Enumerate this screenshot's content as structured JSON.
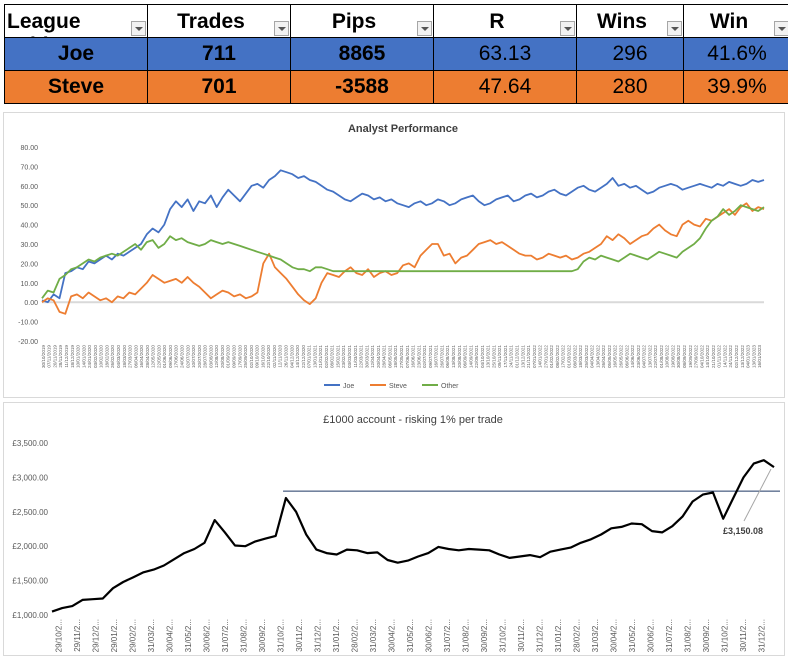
{
  "table": {
    "headers": [
      "League Tabl",
      "Trades",
      "Pips",
      "R",
      "Wins",
      "Win Rate"
    ],
    "rows": [
      {
        "name": "Joe",
        "trades": "711",
        "pips": "8865",
        "r": "63.13",
        "wins": "296",
        "rate": "41.6%"
      },
      {
        "name": "Steve",
        "trades": "701",
        "pips": "-3588",
        "r": "47.64",
        "wins": "280",
        "rate": "39.9%"
      }
    ],
    "colors": {
      "joe": "#4472c4",
      "steve": "#ed7d31"
    }
  },
  "chart_data": [
    {
      "type": "line",
      "title": "Analyst Performance",
      "ylim": [
        -20,
        80
      ],
      "yticks": [
        "-20.00",
        "-10.00",
        "0.00",
        "10.00",
        "20.00",
        "30.00",
        "40.00",
        "50.00",
        "60.00",
        "70.00",
        "80.00"
      ],
      "grid": false,
      "legend": "bottom",
      "x_tick_labels": [
        "30/10/2019",
        "07/11/2019",
        "20/11/2019",
        "28/11/2019",
        "11/12/2019",
        "18/12/2019",
        "10/01/2020",
        "14/01/2020",
        "24/01/2020",
        "03/02/2020",
        "10/02/2020",
        "18/02/2020",
        "26/02/2020",
        "04/03/2020",
        "18/03/2020",
        "27/03/2020",
        "06/04/2020",
        "16/04/2020",
        "28/04/2020",
        "12/05/2020",
        "22/05/2020",
        "01/06/2020",
        "09/06/2020",
        "17/06/2020",
        "24/06/2020",
        "02/07/2020",
        "10/07/2020",
        "20/07/2020",
        "28/07/2020",
        "03/08/2020",
        "12/08/2020",
        "20/08/2020",
        "01/09/2020",
        "09/09/2020",
        "17/09/2020",
        "25/09/2020",
        "02/10/2020",
        "09/10/2020",
        "16/10/2020",
        "22/10/2020",
        "02/11/2020",
        "12/11/2020",
        "26/11/2020",
        "04/12/2020",
        "14/12/2020",
        "22/12/2020",
        "07/01/2021",
        "13/01/2021",
        "21/01/2021",
        "02/02/2021",
        "08/02/2021",
        "15/02/2021",
        "23/02/2021",
        "03/03/2021",
        "11/03/2021",
        "22/03/2021",
        "30/03/2021",
        "12/04/2021",
        "20/04/2021",
        "28/04/2021",
        "06/05/2021",
        "18/05/2021",
        "27/05/2021",
        "07/06/2021",
        "16/06/2021",
        "23/06/2021",
        "02/07/2021",
        "09/07/2021",
        "16/07/2021",
        "26/07/2021",
        "06/08/2021",
        "13/08/2021",
        "20/08/2021",
        "06/09/2021",
        "14/09/2021",
        "22/09/2021",
        "04/10/2021",
        "13/10/2021",
        "25/10/2021",
        "09/11/2021",
        "17/11/2021",
        "24/11/2021",
        "01/12/2021",
        "13/12/2021",
        "21/12/2021",
        "07/01/2022",
        "14/01/2022",
        "27/01/2022",
        "01/02/2022",
        "08/02/2022",
        "17/02/2022",
        "01/03/2022",
        "08/03/2022",
        "18/03/2022",
        "25/03/2022",
        "04/04/2022",
        "13/04/2022",
        "26/04/2022",
        "05/05/2022",
        "16/05/2022",
        "26/05/2022",
        "06/06/2022",
        "14/06/2022",
        "23/06/2022",
        "04/07/2022",
        "13/07/2022",
        "22/07/2022",
        "01/08/2022",
        "10/08/2022",
        "19/08/2022",
        "30/08/2022",
        "08/09/2022",
        "19/09/2022",
        "27/09/2022",
        "04/10/2022",
        "14/10/2022",
        "21/10/2022",
        "01/11/2022",
        "14/11/2022",
        "24/11/2022",
        "02/12/2022",
        "13/12/2022",
        "04/01/2023",
        "13/01/2023",
        "16/01/2023"
      ],
      "series": [
        {
          "name": "Joe",
          "color": "#4472c4",
          "values": [
            1,
            0,
            4,
            2,
            15,
            16,
            18,
            17,
            21,
            20,
            22,
            24,
            22,
            25,
            24,
            26,
            28,
            30,
            35,
            38,
            36,
            40,
            48,
            52,
            49,
            53,
            47,
            52,
            51,
            55,
            49,
            54,
            58,
            55,
            52,
            56,
            60,
            61,
            59,
            63,
            65,
            68,
            67,
            66,
            64,
            65,
            63,
            62,
            60,
            58,
            57,
            55,
            53,
            52,
            54,
            56,
            55,
            53,
            54,
            52,
            53,
            51,
            50,
            49,
            51,
            52,
            50,
            51,
            53,
            52,
            50,
            51,
            53,
            54,
            55,
            52,
            50,
            51,
            53,
            54,
            55,
            52,
            53,
            55,
            56,
            54,
            55,
            57,
            58,
            56,
            55,
            57,
            59,
            60,
            58,
            57,
            59,
            61,
            64,
            60,
            61,
            59,
            60,
            58,
            56,
            57,
            59,
            60,
            61,
            60,
            58,
            59,
            60,
            61,
            60,
            59,
            61,
            60,
            62,
            61,
            60,
            61,
            63,
            62,
            63
          ]
        },
        {
          "name": "Steve",
          "color": "#ed7d31",
          "values": [
            0,
            2,
            1,
            -5,
            -6,
            3,
            4,
            2,
            5,
            3,
            1,
            2,
            0,
            3,
            2,
            5,
            4,
            7,
            10,
            14,
            12,
            10,
            11,
            12,
            10,
            13,
            10,
            8,
            5,
            2,
            4,
            6,
            5,
            3,
            4,
            2,
            3,
            5,
            20,
            25,
            18,
            15,
            12,
            8,
            4,
            1,
            -1,
            2,
            10,
            15,
            14,
            13,
            16,
            18,
            15,
            14,
            17,
            13,
            15,
            16,
            14,
            15,
            19,
            20,
            18,
            24,
            27,
            30,
            30,
            24,
            25,
            20,
            23,
            24,
            27,
            30,
            31,
            32,
            30,
            31,
            29,
            27,
            25,
            24,
            24,
            22,
            23,
            25,
            24,
            23,
            24,
            22,
            23,
            25,
            26,
            28,
            30,
            34,
            32,
            35,
            33,
            30,
            32,
            34,
            35,
            38,
            40,
            37,
            35,
            34,
            40,
            42,
            40,
            39,
            43,
            42,
            44,
            46,
            48,
            45,
            49,
            51,
            47,
            49,
            48
          ]
        },
        {
          "name": "Other",
          "color": "#70ad47",
          "values": [
            2,
            6,
            5,
            12,
            14,
            17,
            18,
            20,
            22,
            21,
            23,
            24,
            25,
            24,
            26,
            28,
            30,
            27,
            31,
            32,
            28,
            30,
            34,
            32,
            33,
            31,
            30,
            29,
            30,
            32,
            31,
            30,
            31,
            30,
            29,
            28,
            27,
            26,
            25,
            24,
            23,
            22,
            20,
            18,
            17,
            17,
            16,
            18,
            18,
            17,
            16,
            16,
            16,
            16,
            16,
            16,
            16,
            16,
            16,
            16,
            16,
            16,
            16,
            16,
            16,
            16,
            16,
            16,
            16,
            16,
            16,
            16,
            16,
            16,
            16,
            16,
            16,
            16,
            16,
            16,
            16,
            16,
            16,
            16,
            16,
            16,
            16,
            16,
            16,
            16,
            16,
            16,
            17,
            21,
            23,
            22,
            24,
            23,
            22,
            21,
            23,
            25,
            24,
            23,
            22,
            24,
            26,
            25,
            24,
            23,
            26,
            28,
            30,
            33,
            38,
            42,
            44,
            48,
            45,
            47,
            50,
            49,
            48,
            47,
            49
          ]
        }
      ]
    },
    {
      "type": "line",
      "title": "£1000 account - risking 1% per trade",
      "ylim": [
        1000,
        3500
      ],
      "yticks": [
        "£1,000.00",
        "£1,500.00",
        "£2,000.00",
        "£2,500.00",
        "£3,000.00",
        "£3,500.00"
      ],
      "x_tick_labels": [
        "29/10/2...",
        "29/11/2...",
        "29/12/2...",
        "29/01/2...",
        "29/02/2...",
        "31/03/2...",
        "30/04/2...",
        "31/05/2...",
        "30/06/2...",
        "31/07/2...",
        "31/08/2...",
        "30/09/2...",
        "31/10/2...",
        "30/11/2...",
        "31/12/2...",
        "31/01/2...",
        "28/02/2...",
        "31/03/2...",
        "30/04/2...",
        "31/05/2...",
        "30/06/2...",
        "31/07/2...",
        "31/08/2...",
        "30/09/2...",
        "31/10/2...",
        "30/11/2...",
        "31/12/2...",
        "31/01/2...",
        "28/02/2...",
        "31/03/2...",
        "30/04/2...",
        "31/05/2...",
        "30/06/2...",
        "31/07/2...",
        "31/08/2...",
        "30/09/2...",
        "31/10/2...",
        "30/11/2...",
        "31/12/2..."
      ],
      "reference_line": 2800,
      "annotation": "£3,150.08",
      "series": [
        {
          "name": "",
          "color": "#000000",
          "values": [
            1050,
            1100,
            1130,
            1220,
            1230,
            1240,
            1390,
            1480,
            1550,
            1620,
            1660,
            1720,
            1810,
            1900,
            1960,
            2050,
            2380,
            2200,
            2010,
            2000,
            2070,
            2110,
            2150,
            2700,
            2500,
            2170,
            1950,
            1900,
            1880,
            1950,
            1940,
            1900,
            1910,
            1800,
            1760,
            1790,
            1850,
            1900,
            1990,
            1960,
            1940,
            1960,
            1950,
            1940,
            1880,
            1830,
            1850,
            1870,
            1840,
            1920,
            1950,
            1980,
            2050,
            2100,
            2170,
            2260,
            2280,
            2330,
            2320,
            2220,
            2200,
            2290,
            2430,
            2650,
            2750,
            2780,
            2400,
            2700,
            3000,
            3200,
            3250,
            3150
          ]
        }
      ]
    }
  ]
}
